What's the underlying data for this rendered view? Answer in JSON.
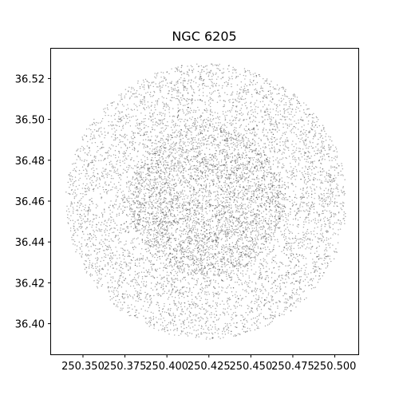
{
  "chart_data": {
    "type": "scatter",
    "title": "NGC 6205",
    "xlabel": "",
    "ylabel": "",
    "xlim": [
      250.331,
      250.514
    ],
    "ylim": [
      36.385,
      36.535
    ],
    "xticks": [
      250.35,
      250.375,
      250.4,
      250.425,
      250.45,
      250.475,
      250.5
    ],
    "xtick_labels": [
      "250.350",
      "250.375",
      "250.400",
      "250.425",
      "250.450",
      "250.475",
      "250.500"
    ],
    "yticks": [
      36.4,
      36.42,
      36.44,
      36.46,
      36.48,
      36.5,
      36.52
    ],
    "ytick_labels": [
      "36.40",
      "36.42",
      "36.44",
      "36.46",
      "36.48",
      "36.50",
      "36.52"
    ],
    "grid": false,
    "legend": "none",
    "marker_color": "#000000",
    "marker_alpha": 0.35,
    "points": {
      "description_of_distribution": "dense star field filling a circular region",
      "count_estimate": 16000,
      "center": [
        250.4235,
        36.4599
      ],
      "radius_x": 0.0838,
      "radius_y": 0.0675,
      "x_min": 250.3398,
      "x_max": 250.5072,
      "y_min": 36.3925,
      "y_max": 36.5274
    }
  }
}
